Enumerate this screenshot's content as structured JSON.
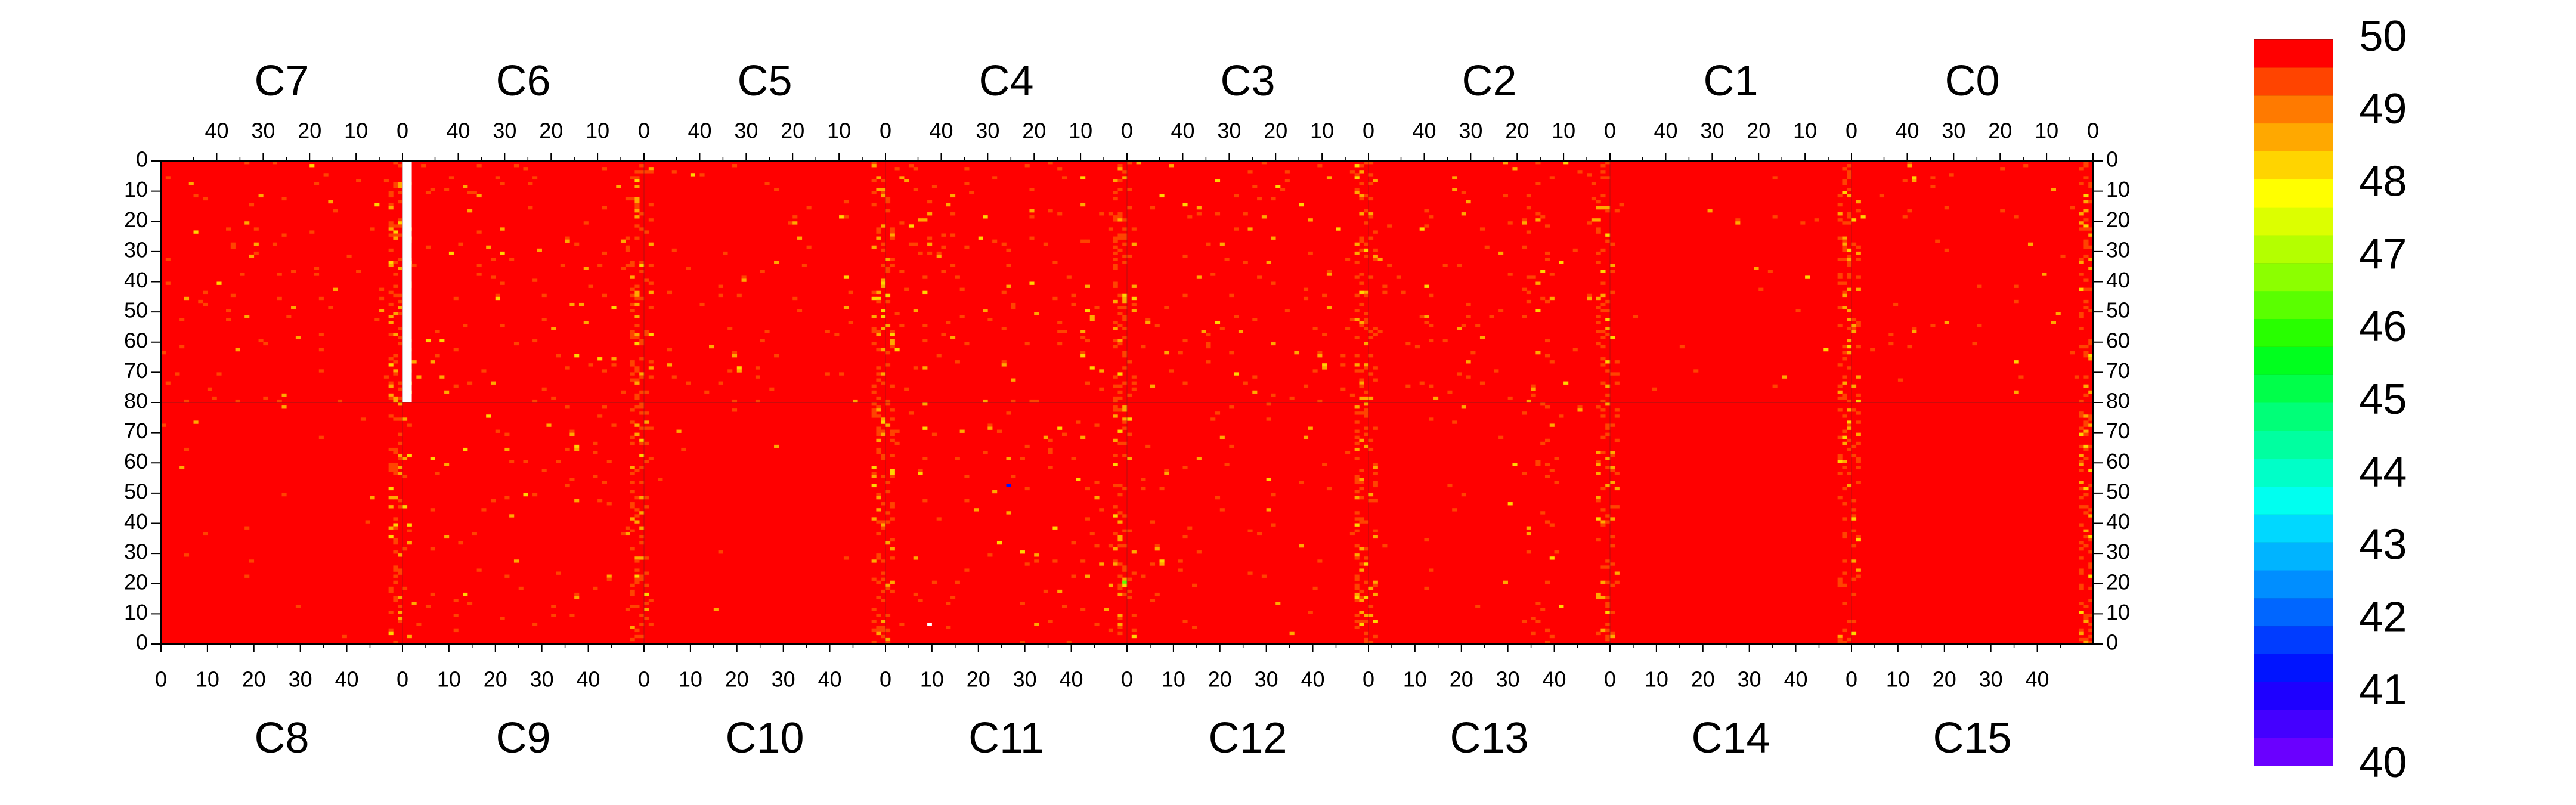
{
  "chart_data": {
    "type": "heatmap",
    "chips_top": [
      "C7",
      "C6",
      "C5",
      "C4",
      "C3",
      "C2",
      "C1",
      "C0"
    ],
    "chips_bottom": [
      "C8",
      "C9",
      "C10",
      "C11",
      "C12",
      "C13",
      "C14",
      "C15"
    ],
    "columns_per_chip": 52,
    "rows_per_half": 80,
    "x_ticks_top": [
      "40",
      "30",
      "20",
      "10",
      "0"
    ],
    "x_tick_values_top": [
      40,
      30,
      20,
      10,
      0
    ],
    "x_ticks_bottom": [
      "0",
      "10",
      "20",
      "30",
      "40"
    ],
    "x_tick_values_bottom": [
      0,
      10,
      20,
      30,
      40
    ],
    "y_ticks_top": [
      "0",
      "10",
      "20",
      "30",
      "40",
      "50",
      "60",
      "70",
      "80"
    ],
    "y_tick_values_top": [
      0,
      10,
      20,
      30,
      40,
      50,
      60,
      70,
      80
    ],
    "y_ticks_bottom": [
      "70",
      "60",
      "50",
      "40",
      "30",
      "20",
      "10",
      "0"
    ],
    "y_tick_values_bottom": [
      70,
      60,
      50,
      40,
      30,
      20,
      10,
      0
    ],
    "z_range": [
      40,
      50
    ],
    "colorbar_labels": [
      "50",
      "49",
      "48",
      "47",
      "46",
      "45",
      "44",
      "43",
      "42",
      "41",
      "40"
    ],
    "colorbar_values": [
      50,
      49,
      48,
      47,
      46,
      45,
      44,
      43,
      42,
      41,
      40
    ],
    "colorbar_colors": [
      "#6a00ff",
      "#4400ff",
      "#1e00ff",
      "#0014ff",
      "#003cff",
      "#0066ff",
      "#008eff",
      "#00b4ff",
      "#00d8ff",
      "#00fff0",
      "#00ffc8",
      "#00ffa0",
      "#00ff78",
      "#00ff4a",
      "#00ff1e",
      "#28ff00",
      "#5aff00",
      "#8cff00",
      "#b4ff00",
      "#dcff00",
      "#ffff00",
      "#ffd400",
      "#ffa800",
      "#ff7a00",
      "#ff4400",
      "#ff0000"
    ],
    "dominant_value": 50,
    "value_distribution": "Nearly all pixels at 50 (red); scattered pixels at 49-48 (orange/yellow), concentrated in columns near chip boundaries; a few isolated pixels near 46 and 41.",
    "masked_region": {
      "chip": "C7",
      "columns": [
        0,
        2
      ],
      "rows": [
        0,
        80
      ]
    }
  }
}
